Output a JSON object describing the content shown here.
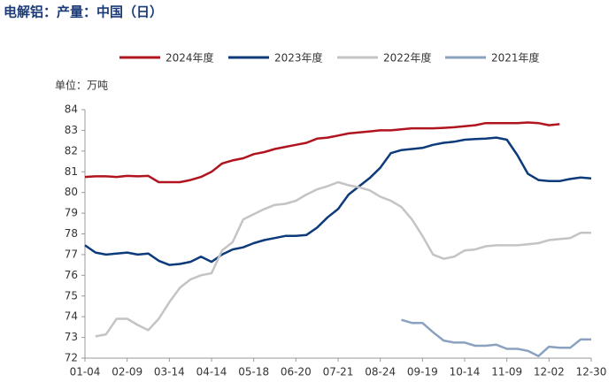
{
  "chart_data": {
    "type": "line",
    "title": "电解铝：产量：中国（日）",
    "y_label": "单位：万吨",
    "categories": [
      "01-04",
      null,
      null,
      null,
      "02-09",
      null,
      null,
      null,
      "03-14",
      null,
      null,
      null,
      "04-14",
      null,
      null,
      null,
      "05-18",
      null,
      null,
      null,
      "06-20",
      null,
      null,
      null,
      "07-21",
      null,
      null,
      null,
      "08-24",
      null,
      null,
      null,
      "09-19",
      null,
      null,
      null,
      "10-14",
      null,
      null,
      null,
      "11-09",
      null,
      null,
      null,
      "12-02",
      null,
      null,
      null,
      "12-30"
    ],
    "ylim": [
      72,
      84
    ],
    "yticks": [
      72,
      73,
      74,
      75,
      76,
      77,
      78,
      79,
      80,
      81,
      82,
      83,
      84
    ],
    "grid": false,
    "legend": "top",
    "series": [
      {
        "name": "2024年度",
        "color": "#b0141e",
        "values": [
          80.75,
          80.78,
          80.78,
          80.75,
          80.8,
          80.78,
          80.8,
          80.5,
          80.5,
          80.5,
          80.6,
          80.75,
          81.0,
          81.4,
          81.55,
          81.65,
          81.85,
          81.95,
          82.1,
          82.2,
          82.3,
          82.4,
          82.6,
          82.65,
          82.75,
          82.85,
          82.9,
          82.95,
          83.0,
          83.0,
          83.05,
          83.1,
          83.1,
          83.1,
          83.12,
          83.15,
          83.2,
          83.25,
          83.35,
          83.35,
          83.35,
          83.35,
          83.38,
          83.35,
          83.25,
          83.3,
          null,
          null,
          null
        ]
      },
      {
        "name": "2023年度",
        "color": "#0d3a7a",
        "values": [
          77.45,
          77.1,
          77.0,
          77.05,
          77.1,
          77.0,
          77.05,
          76.7,
          76.5,
          76.55,
          76.65,
          76.9,
          76.65,
          77.0,
          77.25,
          77.35,
          77.55,
          77.7,
          77.8,
          77.9,
          77.9,
          77.95,
          78.3,
          78.8,
          79.2,
          79.9,
          80.3,
          80.7,
          81.2,
          81.9,
          82.05,
          82.1,
          82.15,
          82.3,
          82.4,
          82.45,
          82.55,
          82.58,
          82.6,
          82.65,
          82.55,
          81.8,
          80.9,
          80.6,
          80.55,
          80.55,
          80.65,
          80.72,
          80.68
        ]
      },
      {
        "name": "2022年度",
        "color": "#c4c4c4",
        "values": [
          null,
          73.05,
          73.15,
          73.9,
          73.9,
          73.6,
          73.35,
          73.9,
          74.7,
          75.4,
          75.8,
          76.0,
          76.1,
          77.2,
          77.6,
          78.7,
          78.95,
          79.2,
          79.4,
          79.45,
          79.6,
          79.9,
          80.15,
          80.3,
          80.5,
          80.35,
          80.25,
          80.1,
          79.8,
          79.6,
          79.3,
          78.7,
          77.9,
          77.0,
          76.8,
          76.9,
          77.2,
          77.25,
          77.4,
          77.45,
          77.45,
          77.45,
          77.5,
          77.55,
          77.7,
          77.75,
          77.8,
          78.05,
          78.05
        ]
      },
      {
        "name": "2021年度",
        "color": "#8aa2bf",
        "values": [
          null,
          null,
          null,
          null,
          null,
          null,
          null,
          null,
          null,
          null,
          null,
          null,
          null,
          null,
          null,
          null,
          null,
          null,
          null,
          null,
          null,
          null,
          null,
          null,
          null,
          null,
          null,
          null,
          null,
          null,
          73.85,
          73.7,
          73.7,
          73.25,
          72.85,
          72.75,
          72.75,
          72.6,
          72.6,
          72.65,
          72.45,
          72.45,
          72.35,
          72.1,
          72.55,
          72.5,
          72.5,
          72.9,
          72.9
        ]
      }
    ]
  }
}
